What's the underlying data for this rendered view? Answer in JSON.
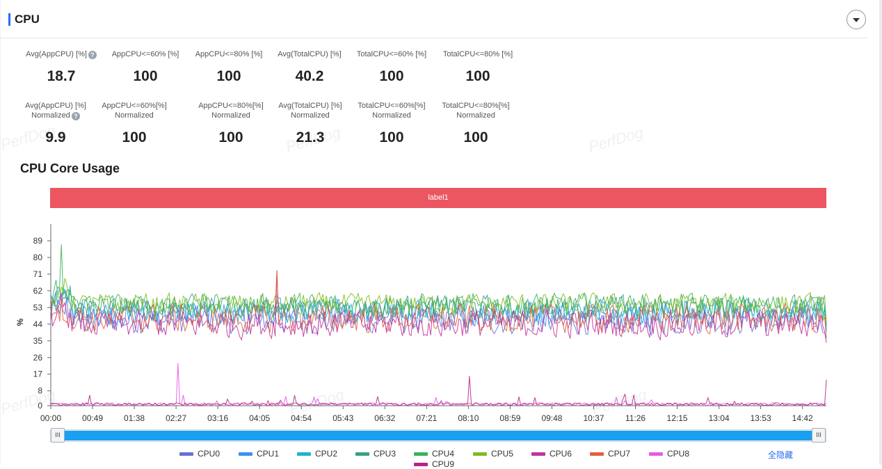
{
  "header": {
    "title": "CPU",
    "collapse_icon": "chevron-down-icon"
  },
  "metrics": {
    "row1": [
      {
        "label": "Avg(AppCPU) [%]",
        "help": true,
        "value": "18.7"
      },
      {
        "label": "AppCPU<=60% [%]",
        "help": false,
        "value": "100"
      },
      {
        "label": "AppCPU<=80% [%]",
        "help": false,
        "value": "100"
      },
      {
        "label": "Avg(TotalCPU) [%]",
        "help": false,
        "value": "40.2"
      },
      {
        "label": "TotalCPU<=60% [%]",
        "help": false,
        "value": "100"
      },
      {
        "label": "TotalCPU<=80% [%]",
        "help": false,
        "value": "100"
      }
    ],
    "row2": [
      {
        "label1": "Avg(AppCPU) [%]",
        "label2": "Normalized",
        "help": true,
        "value": "9.9"
      },
      {
        "label1": "AppCPU<=60%[%]",
        "label2": "Normalized",
        "help": false,
        "value": "100"
      },
      {
        "label1": "AppCPU<=80%[%]",
        "label2": "Normalized",
        "help": false,
        "value": "100"
      },
      {
        "label1": "Avg(TotalCPU) [%]",
        "label2": "Normalized",
        "help": false,
        "value": "21.3"
      },
      {
        "label1": "TotalCPU<=60%[%]",
        "label2": "Normalized",
        "help": false,
        "value": "100"
      },
      {
        "label1": "TotalCPU<=80%[%]",
        "label2": "Normalized",
        "help": false,
        "value": "100"
      }
    ]
  },
  "watermark": "PerfDog",
  "section_title": "CPU Core Usage",
  "label_bar": "label1",
  "chart_data": {
    "type": "line",
    "title": "CPU Core Usage",
    "ylabel": "%",
    "xlabel": "",
    "y_ticks": [
      "0",
      "8",
      "17",
      "26",
      "35",
      "44",
      "53",
      "62",
      "71",
      "80",
      "89"
    ],
    "ylim": [
      0,
      94
    ],
    "x_ticks": [
      "00:00",
      "00:49",
      "01:38",
      "02:27",
      "03:16",
      "04:05",
      "04:54",
      "05:43",
      "06:32",
      "07:21",
      "08:10",
      "08:59",
      "09:48",
      "10:37",
      "11:26",
      "12:15",
      "13:04",
      "13:53",
      "14:42"
    ],
    "xlim_seconds": [
      0,
      910
    ],
    "grid": false,
    "legend_position": "bottom",
    "series": [
      {
        "name": "CPU0",
        "color": "#6a6fd8",
        "base": 46,
        "noise": 7,
        "approx_range": [
          30,
          63
        ]
      },
      {
        "name": "CPU1",
        "color": "#3d8ff0",
        "base": 50,
        "noise": 7,
        "approx_range": [
          30,
          66
        ]
      },
      {
        "name": "CPU2",
        "color": "#1fb0d8",
        "base": 51,
        "noise": 6,
        "approx_range": [
          32,
          65
        ]
      },
      {
        "name": "CPU3",
        "color": "#3a9e86",
        "base": 53,
        "noise": 6,
        "approx_range": [
          32,
          72
        ]
      },
      {
        "name": "CPU4",
        "color": "#37b35a",
        "base": 54,
        "noise": 6,
        "approx_range": [
          33,
          87
        ]
      },
      {
        "name": "CPU5",
        "color": "#7cbd1a",
        "base": 55,
        "noise": 5,
        "approx_range": [
          35,
          71
        ]
      },
      {
        "name": "CPU6",
        "color": "#c23399",
        "base": 44,
        "noise": 7,
        "approx_range": [
          27,
          73
        ]
      },
      {
        "name": "CPU7",
        "color": "#e0613f",
        "base": 47,
        "noise": 7,
        "approx_range": [
          27,
          73
        ]
      },
      {
        "name": "CPU8",
        "color": "#e55ae6",
        "base": 1,
        "noise": 1,
        "approx_range": [
          0,
          23
        ]
      },
      {
        "name": "CPU9",
        "color": "#b8238a",
        "base": 1,
        "noise": 1,
        "approx_range": [
          0,
          16
        ]
      }
    ]
  },
  "slider": {
    "left_handle": "III",
    "right_handle": "III"
  },
  "hide_all": "全隐藏"
}
